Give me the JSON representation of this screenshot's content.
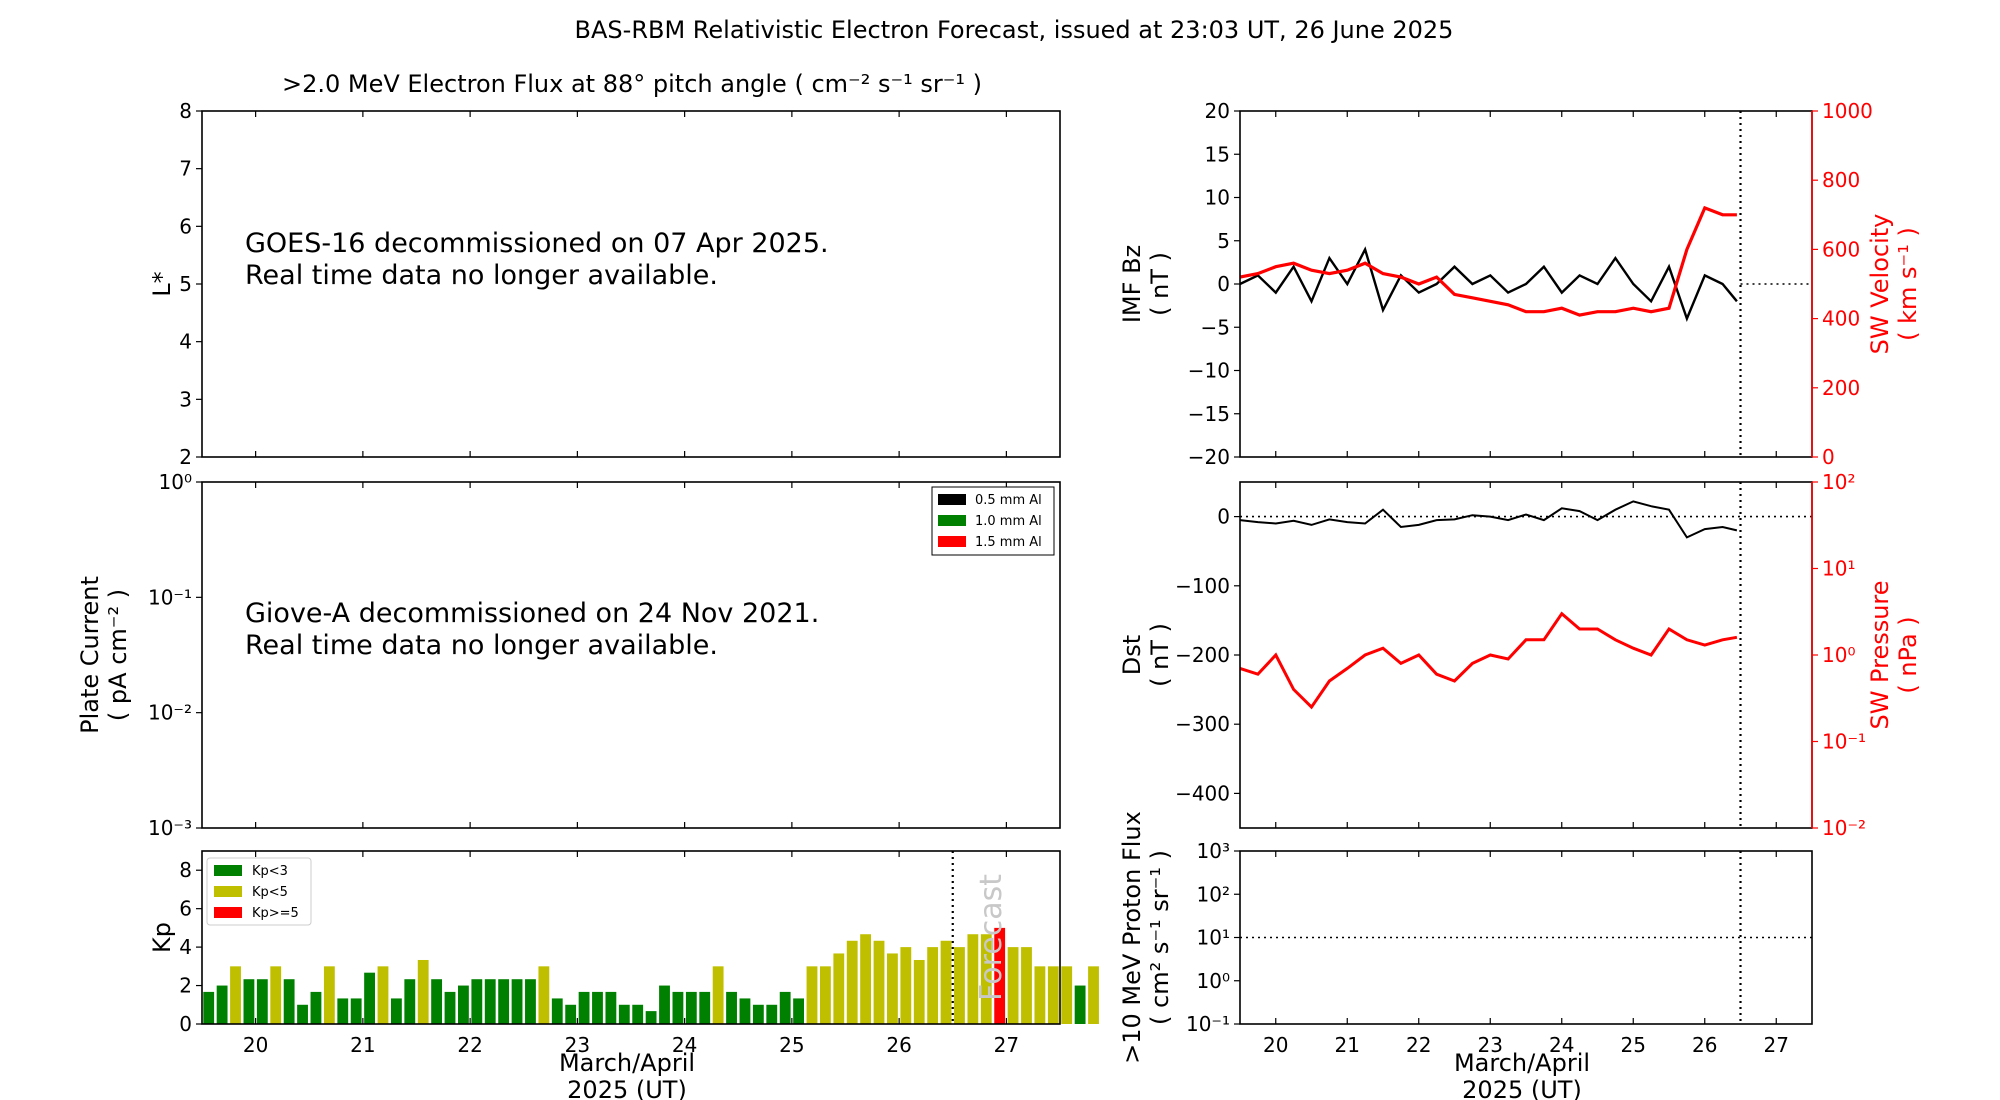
{
  "figure": {
    "title": "BAS-RBM Relativistic Electron Forecast, issued at 23:03 UT, 26 June 2025",
    "xlabel_line1": "March/April",
    "xlabel_line2": "2025 (UT)"
  },
  "colors": {
    "black": "#000000",
    "red": "#ff0000",
    "green": "#008000",
    "olive": "#bfbf00",
    "forecast_text": "#c8c8c8"
  },
  "chart_data": [
    {
      "id": "flux",
      "type": "heatmap",
      "title": ">2.0 MeV Electron Flux at 88° pitch angle ( cm⁻² s⁻¹ sr⁻¹ )",
      "ylabel": "L*",
      "ylim": [
        2,
        8
      ],
      "yticks": [
        "2",
        "3",
        "4",
        "5",
        "6",
        "7",
        "8"
      ],
      "xlim": [
        19.5,
        27.5
      ],
      "annotation_line1": "GOES-16 decommissioned on 07 Apr 2025.",
      "annotation_line2": "Real time data no longer available."
    },
    {
      "id": "plate",
      "type": "line",
      "ylabel_line1": "Plate Current",
      "ylabel_line2": "( pA cm⁻² )",
      "yscale": "log",
      "ylim": [
        0.001,
        1
      ],
      "yticks": [
        "10⁻³",
        "10⁻²",
        "10⁻¹",
        "10⁰"
      ],
      "legend": [
        "0.5 mm Al",
        "1.0 mm Al",
        "1.5 mm Al"
      ],
      "legend_position": "top-right",
      "annotation_line1": "Giove-A decommissioned on 24 Nov 2021.",
      "annotation_line2": "Real time data no longer available."
    },
    {
      "id": "kp",
      "type": "bar",
      "ylabel": "Kp",
      "ylim": [
        0,
        9
      ],
      "yticks": [
        "0",
        "2",
        "4",
        "6",
        "8"
      ],
      "xlim": [
        19.5,
        27.5
      ],
      "xticks": [
        "20",
        "21",
        "22",
        "23",
        "24",
        "25",
        "26",
        "27"
      ],
      "bar_start": 19.5,
      "bar_step": 0.125,
      "values": [
        1.67,
        2.0,
        3.0,
        2.33,
        2.33,
        3.0,
        2.33,
        1.0,
        1.67,
        3.0,
        1.33,
        1.33,
        2.67,
        3.0,
        1.33,
        2.33,
        3.33,
        2.33,
        1.67,
        2.0,
        2.33,
        2.33,
        2.33,
        2.33,
        2.33,
        3.0,
        1.33,
        1.0,
        1.67,
        1.67,
        1.67,
        1.0,
        1.0,
        0.67,
        2.0,
        1.67,
        1.67,
        1.67,
        3.0,
        1.67,
        1.33,
        1.0,
        1.0,
        1.67,
        1.33,
        3.0,
        3.0,
        3.67,
        4.33,
        4.67,
        4.33,
        3.67,
        4.0,
        3.33,
        4.0,
        4.33,
        4.0,
        4.67,
        4.67,
        5.0,
        4.0,
        4.0,
        3.0,
        3.0,
        3.0,
        2.0,
        3.0
      ],
      "forecast_start_index": 58,
      "forecast_line_x": 26.5,
      "forecast_label": "Forecast",
      "legend": [
        "Kp<3",
        "Kp<5",
        "Kp>=5"
      ],
      "legend_position": "top-left"
    },
    {
      "id": "imf",
      "type": "line",
      "ylabel_line1": "IMF Bz",
      "ylabel_line2": "( nT )",
      "ylim": [
        -20,
        20
      ],
      "yticks": [
        "−20",
        "−15",
        "−10",
        "−5",
        "0",
        "5",
        "10",
        "15",
        "20"
      ],
      "y2label_line1": "SW Velocity",
      "y2label_line2": "( km s⁻¹ )",
      "y2lim": [
        0,
        1000
      ],
      "y2ticks": [
        "0",
        "200",
        "400",
        "600",
        "800",
        "1000"
      ],
      "xlim": [
        19.5,
        27.5
      ],
      "series": [
        {
          "color": "#000000",
          "x": [
            19.5,
            19.75,
            20.0,
            20.25,
            20.5,
            20.75,
            21.0,
            21.25,
            21.5,
            21.75,
            22.0,
            22.25,
            22.5,
            22.75,
            23.0,
            23.25,
            23.5,
            23.75,
            24.0,
            24.25,
            24.5,
            24.75,
            25.0,
            25.25,
            25.5,
            25.75,
            26.0,
            26.25,
            26.45
          ],
          "y": [
            0,
            1,
            -1,
            2,
            -2,
            3,
            0,
            4,
            -3,
            1,
            -1,
            0,
            2,
            0,
            1,
            -1,
            0,
            2,
            -1,
            1,
            0,
            3,
            0,
            -2,
            2,
            -4,
            1,
            0,
            -2
          ]
        },
        {
          "color": "#ff0000",
          "x": [
            19.5,
            19.75,
            20.0,
            20.25,
            20.5,
            20.75,
            21.0,
            21.25,
            21.5,
            21.75,
            22.0,
            22.25,
            22.5,
            22.75,
            23.0,
            23.25,
            23.5,
            23.75,
            24.0,
            24.25,
            24.5,
            24.75,
            25.0,
            25.25,
            25.5,
            25.75,
            26.0,
            26.25,
            26.45
          ],
          "y": [
            520,
            530,
            550,
            560,
            540,
            530,
            540,
            560,
            530,
            520,
            500,
            520,
            470,
            460,
            450,
            440,
            420,
            420,
            430,
            410,
            420,
            420,
            430,
            420,
            430,
            600,
            720,
            700,
            700
          ]
        }
      ],
      "zero_line": 0,
      "forecast_line_x": 26.5
    },
    {
      "id": "dst",
      "type": "line",
      "ylabel_line1": "Dst",
      "ylabel_line2": "( nT )",
      "ylim": [
        -450,
        50
      ],
      "yticks": [
        "−400",
        "−300",
        "−200",
        "−100",
        "0"
      ],
      "y2label_line1": "SW Pressure",
      "y2label_line2": "( nPa )",
      "y2scale": "log",
      "y2lim": [
        0.01,
        100
      ],
      "y2ticks": [
        "10⁻²",
        "10⁻¹",
        "10⁰",
        "10¹",
        "10²"
      ],
      "xlim": [
        19.5,
        27.5
      ],
      "series": [
        {
          "color": "#000000",
          "x": [
            19.5,
            19.75,
            20.0,
            20.25,
            20.5,
            20.75,
            21.0,
            21.25,
            21.5,
            21.75,
            22.0,
            22.25,
            22.5,
            22.75,
            23.0,
            23.25,
            23.5,
            23.75,
            24.0,
            24.25,
            24.5,
            24.75,
            25.0,
            25.25,
            25.5,
            25.75,
            26.0,
            26.25,
            26.45
          ],
          "y": [
            -5,
            -8,
            -10,
            -6,
            -12,
            -4,
            -8,
            -10,
            10,
            -15,
            -12,
            -5,
            -4,
            2,
            0,
            -5,
            3,
            -5,
            12,
            8,
            -5,
            10,
            22,
            15,
            10,
            -30,
            -18,
            -15,
            -20
          ]
        },
        {
          "color": "#ff0000",
          "x": [
            19.5,
            19.75,
            20.0,
            20.25,
            20.5,
            20.75,
            21.0,
            21.25,
            21.5,
            21.75,
            22.0,
            22.25,
            22.5,
            22.75,
            23.0,
            23.25,
            23.5,
            23.75,
            24.0,
            24.25,
            24.5,
            24.75,
            25.0,
            25.25,
            25.5,
            25.75,
            26.0,
            26.25,
            26.45
          ],
          "y": [
            0.7,
            0.6,
            1.0,
            0.4,
            0.25,
            0.5,
            0.7,
            1.0,
            1.2,
            0.8,
            1.0,
            0.6,
            0.5,
            0.8,
            1.0,
            0.9,
            1.5,
            1.5,
            3.0,
            2.0,
            2.0,
            1.5,
            1.2,
            1.0,
            2.0,
            1.5,
            1.3,
            1.5,
            1.6
          ]
        }
      ],
      "zero_line": 0,
      "forecast_line_x": 26.5
    },
    {
      "id": "proton",
      "type": "line",
      "ylabel_line1": ">10 MeV Proton Flux",
      "ylabel_line2": "( cm² s⁻¹ sr⁻¹ )",
      "yscale": "log",
      "ylim": [
        0.1,
        1000
      ],
      "yticks": [
        "10⁻¹",
        "10⁰",
        "10¹",
        "10²",
        "10³"
      ],
      "xlim": [
        19.5,
        27.5
      ],
      "xticks": [
        "20",
        "21",
        "22",
        "23",
        "24",
        "25",
        "26",
        "27"
      ],
      "threshold_line": 10,
      "forecast_line_x": 26.5
    }
  ]
}
